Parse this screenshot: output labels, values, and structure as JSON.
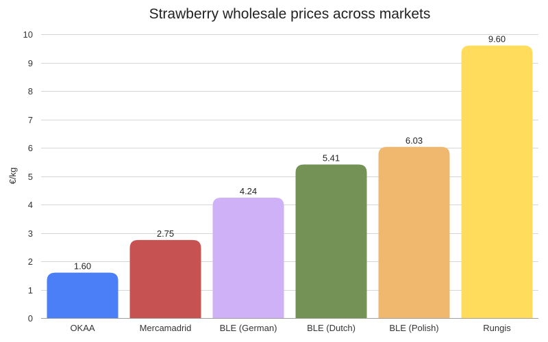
{
  "chart_data": {
    "type": "bar",
    "title": "Strawberry wholesale prices across markets",
    "xlabel": "",
    "ylabel": "€/kg",
    "ylim": [
      0,
      10
    ],
    "yticks": [
      0,
      1,
      2,
      3,
      4,
      5,
      6,
      7,
      8,
      9,
      10
    ],
    "grid": true,
    "legend": "none",
    "categories": [
      "OKAA",
      "Mercamadrid",
      "BLE (German)",
      "BLE (Dutch)",
      "BLE (Polish)",
      "Rungis"
    ],
    "values": [
      1.6,
      2.75,
      4.24,
      5.41,
      6.03,
      9.6
    ],
    "value_labels": [
      "1.60",
      "2.75",
      "4.24",
      "5.41",
      "6.03",
      "9.60"
    ],
    "colors": [
      "#4a7ff7",
      "#c75252",
      "#cfb1f8",
      "#749255",
      "#f0b86e",
      "#ffdc5c"
    ]
  }
}
